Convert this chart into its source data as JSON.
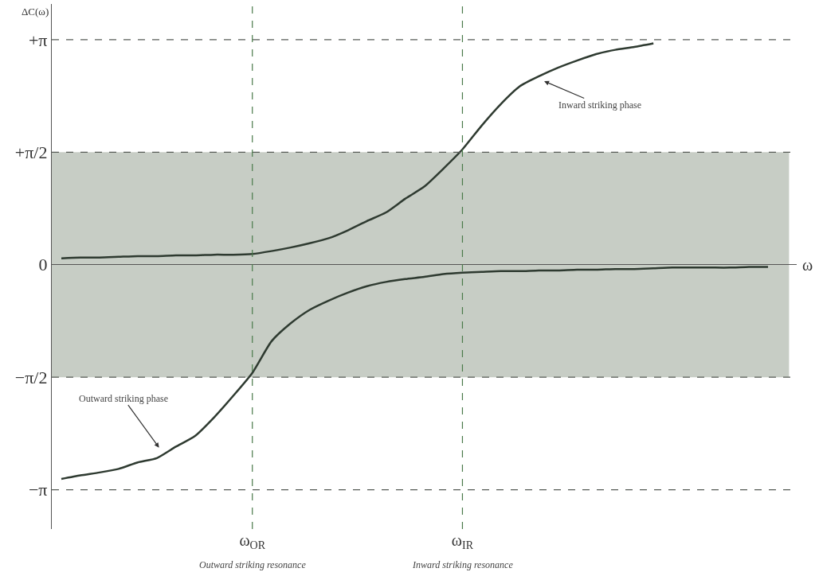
{
  "chart_data": {
    "type": "line",
    "xlabel": "ω",
    "ylabel": "ΔC(ω)",
    "categories": [
      null,
      null,
      null,
      null,
      null,
      null,
      null,
      null,
      null,
      null,
      "ω$_{OR}$",
      null,
      null,
      null,
      null,
      null,
      null,
      null,
      null,
      null,
      null,
      "ω$_{IR}$",
      null,
      null,
      null,
      null,
      null,
      null,
      null,
      null,
      null,
      null,
      null,
      null,
      null,
      null,
      null,
      null,
      null
    ],
    "ylim": [
      -3.69,
      3.64
    ],
    "yticks": [
      {
        "value": -3.1416,
        "label": "−π"
      },
      {
        "value": -1.5708,
        "label": "−π/2"
      },
      0,
      {
        "value": 1.5708,
        "label": "+π/2"
      },
      {
        "value": 3.1416,
        "label": "+π"
      }
    ],
    "series": [
      {
        "color": "#2e3a30",
        "values": [
          0.09,
          0.1,
          0.1,
          0.11,
          0.12,
          0.12,
          0.13,
          0.13,
          0.14,
          0.14,
          0.15,
          0.19,
          0.24,
          0.3,
          0.37,
          0.48,
          0.61,
          0.73,
          0.92,
          1.09,
          1.34,
          1.61,
          1.94,
          2.24,
          2.49,
          2.63,
          2.75,
          2.85,
          2.94,
          3.0,
          3.04,
          3.09,
          null,
          null,
          null,
          null,
          null,
          null,
          null
        ]
      },
      {
        "color": "#2e3a30",
        "values": [
          -2.99,
          -2.94,
          -2.9,
          -2.85,
          -2.76,
          -2.7,
          -2.54,
          -2.39,
          -2.13,
          -1.83,
          -1.51,
          -1.07,
          -0.82,
          -0.63,
          -0.5,
          -0.39,
          -0.3,
          -0.24,
          -0.2,
          -0.17,
          -0.13,
          -0.11,
          -0.1,
          -0.09,
          -0.09,
          -0.08,
          -0.08,
          -0.07,
          -0.07,
          -0.06,
          -0.06,
          -0.05,
          -0.04,
          -0.04,
          -0.04,
          -0.04,
          -0.03,
          -0.03,
          null
        ]
      }
    ],
    "bands": [
      {
        "axis": "y",
        "from": -1.5708,
        "to": 1.5708,
        "color": "#b4bcb2"
      }
    ],
    "ref_lines": [
      {
        "axis": "y",
        "value": 3.1416,
        "color": "#555a55",
        "line_style": "dashed"
      },
      {
        "axis": "y",
        "value": 1.5708,
        "color": "#555a55",
        "line_style": "dashed"
      },
      {
        "axis": "y",
        "value": -1.5708,
        "color": "#555a55",
        "line_style": "dashed"
      },
      {
        "axis": "y",
        "value": -3.1416,
        "color": "#555a55",
        "line_style": "dashed"
      },
      {
        "axis": "x",
        "value": "ω$_{OR}$",
        "color": "#4a7a4a",
        "line_style": "dashed"
      },
      {
        "axis": "x",
        "value": "ω$_{IR}$",
        "color": "#4a7a4a",
        "line_style": "dashed"
      }
    ],
    "annotations": [
      "Inward striking phase",
      "Outward striking phase",
      "Outward striking resonance",
      "Inward striking resonance"
    ],
    "grid": false,
    "marker": "none",
    "line_style": "solid"
  }
}
